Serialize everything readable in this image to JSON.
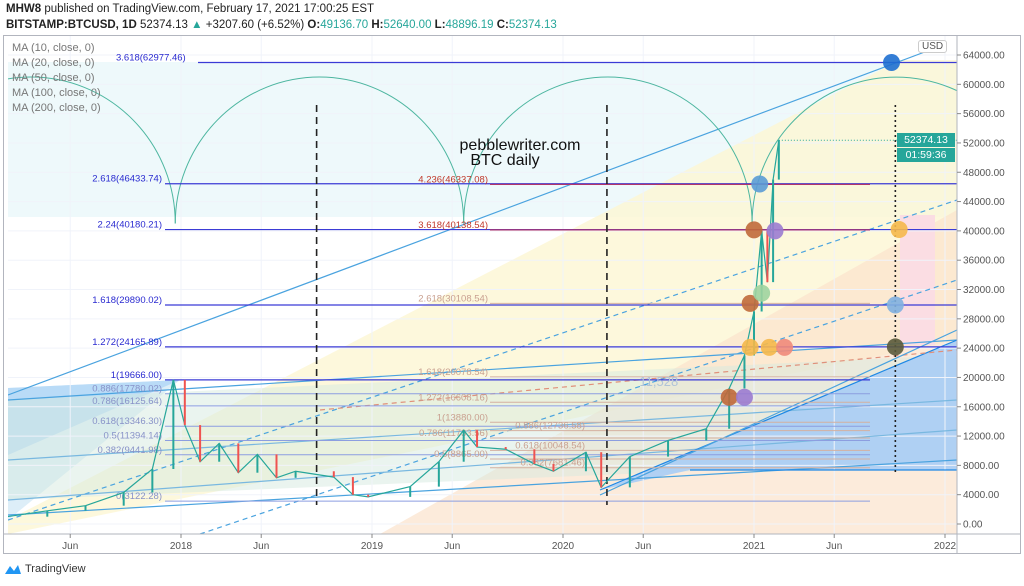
{
  "header": {
    "author": "MHW8",
    "published": "published on TradingView.com, February 17, 2021 17:00:25 EST",
    "symbol": "BITSTAMP:BTCUSD, 1D",
    "last": "52374.13",
    "change": "+3207.60 (+6.52%)",
    "o_label": "O:",
    "o": "49136.70",
    "h_label": "H:",
    "h": "52640.00",
    "l_label": "L:",
    "l": "48896.19",
    "c_label": "C:",
    "c": "52374.13"
  },
  "indicators": [
    "MA (10, close, 0)",
    "MA (20, close, 0)",
    "MA (50, close, 0)",
    "MA (100, close, 0)",
    "MA (200, close, 0)"
  ],
  "price_axis": {
    "currency": "USD",
    "last_price": "52374.13",
    "countdown": "01:59:36"
  },
  "footer": {
    "brand": "TradingView"
  },
  "colors": {
    "up": "#26a69a",
    "down": "#ef5350",
    "fib_left": "#3b3bd6",
    "fib_ext": "#c0392b",
    "arc": "#4db6a0"
  },
  "chart_data": {
    "type": "line",
    "title": "pebblewriter.com",
    "subtitle": "BTC daily",
    "xlabel": "",
    "ylabel": "USD",
    "ylim": [
      -1500,
      66500
    ],
    "xlim": [
      2017.09,
      2022.06
    ],
    "yticks": [
      0,
      4000,
      8000,
      12000,
      16000,
      20000,
      24000,
      28000,
      32000,
      36000,
      40000,
      44000,
      48000,
      52000,
      56000,
      60000,
      64000
    ],
    "ytick_labels": [
      "0.00",
      "4000.00",
      "8000.00",
      "12000.00",
      "16000.00",
      "20000.00",
      "24000.00",
      "28000.00",
      "32000.00",
      "36000.00",
      "40000.00",
      "44000.00",
      "48000.00",
      "52000.00",
      "56000.00",
      "60000.00",
      "64000.00"
    ],
    "xticks": [
      2017.42,
      2018.0,
      2018.42,
      2019.0,
      2019.42,
      2020.0,
      2020.42,
      2021.0,
      2021.42,
      2022.0
    ],
    "xtick_labels": [
      "Jun",
      "2018",
      "Jun",
      "2019",
      "Jun",
      "2020",
      "Jun",
      "2021",
      "Jun",
      "2022"
    ],
    "series": [
      {
        "name": "BTCUSD",
        "x": [
          2017.09,
          2017.3,
          2017.5,
          2017.7,
          2017.85,
          2017.96,
          2018.02,
          2018.1,
          2018.2,
          2018.3,
          2018.4,
          2018.5,
          2018.6,
          2018.8,
          2018.9,
          2018.98,
          2019.2,
          2019.35,
          2019.48,
          2019.55,
          2019.7,
          2019.85,
          2019.95,
          2020.12,
          2020.2,
          2020.35,
          2020.55,
          2020.75,
          2020.87,
          2020.95,
          2021.0,
          2021.04,
          2021.07,
          2021.1,
          2021.13
        ],
        "y": [
          1000,
          1800,
          2500,
          4300,
          7500,
          19666,
          13500,
          8500,
          11000,
          7000,
          9500,
          6300,
          7200,
          6400,
          4000,
          3700,
          5100,
          8500,
          12800,
          10500,
          10200,
          8200,
          7200,
          9800,
          5000,
          9200,
          11400,
          13000,
          18500,
          23000,
          29000,
          40000,
          33000,
          47000,
          52374
        ]
      }
    ],
    "fib_retracement": [
      {
        "label": "3.618(62977.46)",
        "price": 62977.46
      },
      {
        "label": "2.618(46433.74)",
        "price": 46433.74
      },
      {
        "label": "2.24(40180.21)",
        "price": 40180.21
      },
      {
        "label": "1.618(29890.02)",
        "price": 29890.02
      },
      {
        "label": "1.272(24165.89)",
        "price": 24165.89
      },
      {
        "label": "1(19666.00)",
        "price": 19666.0
      },
      {
        "label": "0.886(17780.02)",
        "price": 17780.02
      },
      {
        "label": "0.786(16125.64)",
        "price": 16125.64
      },
      {
        "label": "0.618(13346.30)",
        "price": 13346.3
      },
      {
        "label": "0.5(11394.14)",
        "price": 11394.14
      },
      {
        "label": "0.382(9441.98)",
        "price": 9441.98
      },
      {
        "label": "0(3122.28)",
        "price": 3122.28
      }
    ],
    "fib_extension": [
      {
        "label": "4.236(46337.08)",
        "price": 46337.08
      },
      {
        "label": "3.618(40138.54)",
        "price": 40138.54
      },
      {
        "label": "2.618(30108.54)",
        "price": 30108.54
      },
      {
        "label": "1.618(20078.54)",
        "price": 20078.54
      },
      {
        "label": "1.272(16608.16)",
        "price": 16608.16
      },
      {
        "label": "1(13880.00)",
        "price": 13880.0
      },
      {
        "label": "0.886(12736.58)",
        "price": 12736.58
      },
      {
        "label": "0.786(11733.56)",
        "price": 11733.56
      },
      {
        "label": "0.618(10048.54)",
        "price": 10048.54
      },
      {
        "label": "0.5(8865.00)",
        "price": 8865.0
      },
      {
        "label": "0.382(7681.46)",
        "price": 7681.46
      }
    ],
    "annotations": [
      {
        "text": "11,528",
        "x": 2020.4,
        "price": 18800
      }
    ],
    "vertical_lines": [
      {
        "x": 2018.71,
        "style": "dashed"
      },
      {
        "x": 2020.23,
        "style": "dashed"
      },
      {
        "x": 2021.74,
        "style": "dotted"
      }
    ],
    "arc_bottoms": [
      2017.97,
      2019.48,
      2020.99,
      2022.5
    ],
    "arc_bottom_price": 41000,
    "arc_top_price": 61000,
    "markers": [
      {
        "x": 2021.72,
        "price": 62977,
        "color": "#1e6fd0"
      },
      {
        "x": 2021.03,
        "price": 46400,
        "color": "#5b9bd5"
      },
      {
        "x": 2021.0,
        "price": 40138,
        "color": "#c0693a"
      },
      {
        "x": 2021.11,
        "price": 40000,
        "color": "#9b7bd0"
      },
      {
        "x": 2020.98,
        "price": 30108,
        "color": "#c0693a"
      },
      {
        "x": 2021.04,
        "price": 31500,
        "color": "#9ed39e"
      },
      {
        "x": 2020.98,
        "price": 24100,
        "color": "#f5b84a"
      },
      {
        "x": 2021.08,
        "price": 24100,
        "color": "#f5b84a"
      },
      {
        "x": 2021.16,
        "price": 24100,
        "color": "#f08a7a"
      },
      {
        "x": 2020.87,
        "price": 17300,
        "color": "#c0693a"
      },
      {
        "x": 2020.95,
        "price": 17300,
        "color": "#9b7bd0"
      },
      {
        "x": 2021.76,
        "price": 40180,
        "color": "#f5b84a"
      },
      {
        "x": 2021.74,
        "price": 29890,
        "color": "#7fb0e0"
      },
      {
        "x": 2021.74,
        "price": 24165,
        "color": "#5a5a3a"
      }
    ]
  }
}
